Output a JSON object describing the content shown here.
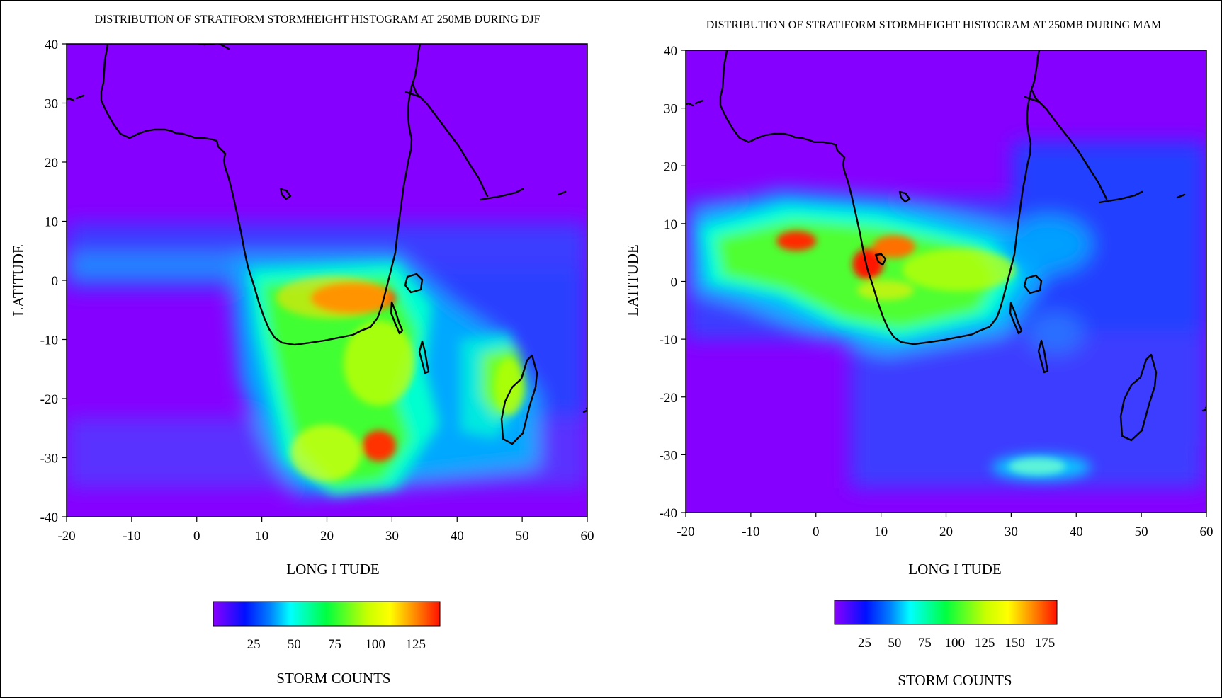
{
  "maps": [
    {
      "id": "djf",
      "title": "DISTRIBUTION OF STRATIFORM STORMHEIGHT HISTOGRAM AT 250MB DURING DJF",
      "xlabel": "LONG I TUDE",
      "ylabel": "LATITUDE",
      "x_ticks": [
        "-20",
        "-10",
        "0",
        "10",
        "20",
        "30",
        "40",
        "50",
        "60"
      ],
      "y_ticks": [
        "40",
        "30",
        "20",
        "10",
        "0",
        "-10",
        "-20",
        "-30",
        "-40"
      ],
      "xlim": [
        -20,
        60
      ],
      "ylim": [
        -40,
        40
      ],
      "colorbar": {
        "ticks": [
          "25",
          "50",
          "75",
          "100",
          "125"
        ],
        "range": [
          0,
          140
        ],
        "label": "STORM COUNTS"
      },
      "hotspots": [
        {
          "lon": 24,
          "lat": -3,
          "value": 130
        },
        {
          "lon": 28,
          "lat": -28,
          "value": 120
        },
        {
          "lon": 28,
          "lat": -14,
          "value": 95
        },
        {
          "lon": 48,
          "lat": -18,
          "value": 90
        }
      ]
    },
    {
      "id": "mam",
      "title": "DISTRIBUTION OF STRATIFORM STORMHEIGHT HISTOGRAM AT 250MB DURING MAM",
      "xlabel": "LONG I TUDE",
      "ylabel": "LATITUDE",
      "x_ticks": [
        "-20",
        "-10",
        "0",
        "10",
        "20",
        "30",
        "40",
        "50",
        "60"
      ],
      "y_ticks": [
        "40",
        "30",
        "20",
        "10",
        "0",
        "-10",
        "-20",
        "-30",
        "-40"
      ],
      "xlim": [
        -20,
        60
      ],
      "ylim": [
        -40,
        40
      ],
      "colorbar": {
        "ticks": [
          "25",
          "50",
          "75",
          "100",
          "125",
          "150",
          "175"
        ],
        "range": [
          0,
          185
        ],
        "label": "STORM COUNTS"
      },
      "hotspots": [
        {
          "lon": -3,
          "lat": 7,
          "value": 170
        },
        {
          "lon": 8,
          "lat": 3,
          "value": 175
        },
        {
          "lon": 12,
          "lat": 6,
          "value": 160
        },
        {
          "lon": 22,
          "lat": 2,
          "value": 120
        },
        {
          "lon": 34,
          "lat": -32,
          "value": 70
        }
      ]
    }
  ]
}
